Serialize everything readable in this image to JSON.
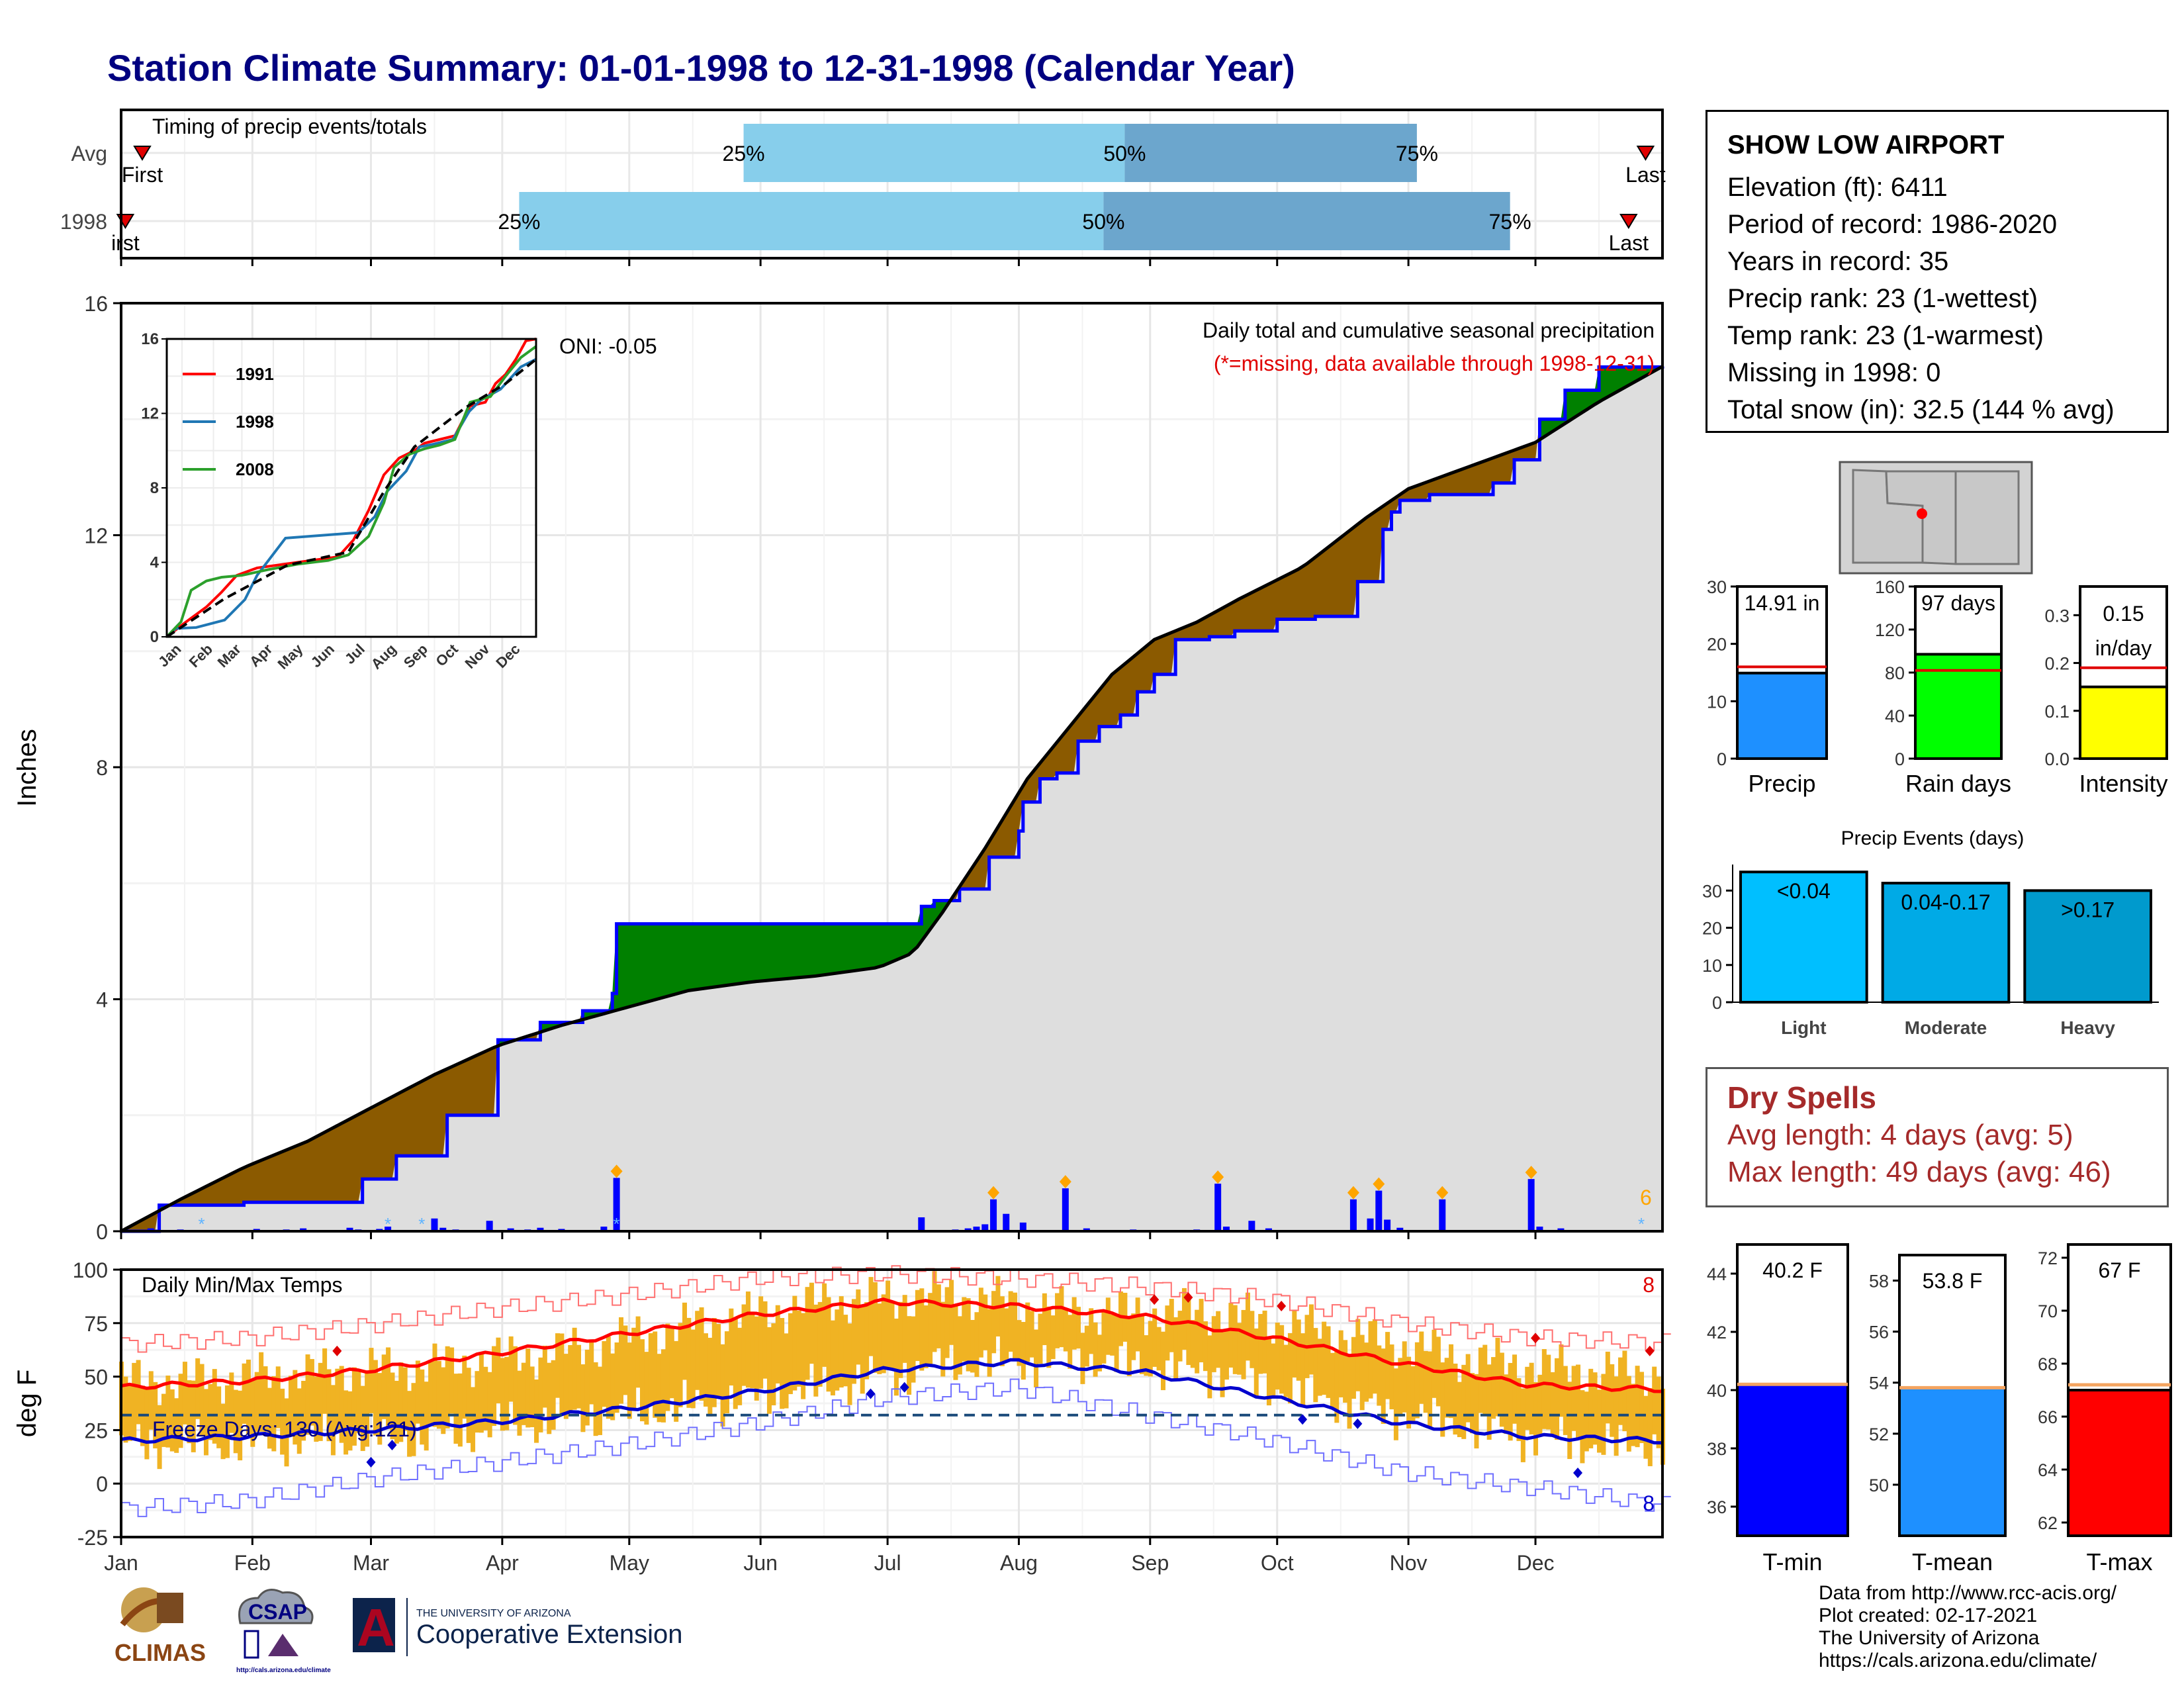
{
  "page_title": "Station Climate Summary: 01-01-1998 to 12-31-1998 (Calendar Year)",
  "station": {
    "name": "SHOW LOW AIRPORT",
    "lines": [
      "Elevation (ft): 6411",
      "Period of record: 1986-2020",
      "Years in record: 35",
      "Precip rank: 23 (1-wettest)",
      "Temp rank: 23 (1-warmest)",
      "Missing in 1998: 0",
      "Total snow (in): 32.5 (144 % avg)"
    ]
  },
  "dry_spells": {
    "title": "Dry Spells",
    "avg_length": "Avg length: 4 days (avg: 5)",
    "max_length": "Max length: 49 days (avg: 46)"
  },
  "credits": [
    "Data from http://www.rcc-acis.org/",
    "Plot created: 02-17-2021",
    "The University of Arizona",
    "https://cals.arizona.edu/climate/"
  ],
  "logos": {
    "climas": "CLIMAS",
    "csap": "CSAP",
    "csap_url": "http://cals.arizona.edu/climate",
    "ua_small": "THE UNIVERSITY OF ARIZONA",
    "ua_big": "Cooperative Extension",
    "ua_letter": "A"
  },
  "colors": {
    "navy": "#000080",
    "above_normal": "#008000",
    "below_normal": "#8b5a00",
    "normal_fill": "#dedede",
    "precip_line": "#0000ff",
    "tmax_line": "#ff0000",
    "tmin_line": "#0000cd",
    "temp_bar": "#f0b323",
    "timing_light": "#87ceeb",
    "timing_dark": "#6ca6cd",
    "dry_spell": "#a52a2a"
  },
  "chart_data": [
    {
      "id": "timing",
      "type": "bar",
      "title": "Timing of precip events/totals",
      "rows": [
        {
          "label": "Avg",
          "first_doy": 6,
          "q25_doy": 148,
          "q50_doy": 238,
          "q75_doy": 307,
          "last_doy": 361,
          "first_label": "First",
          "last_label": "Last"
        },
        {
          "label": "1998",
          "first_doy": 2,
          "q25_doy": 95,
          "q50_doy": 233,
          "q75_doy": 329,
          "last_doy": 357,
          "first_label": "irst",
          "last_label": "Last"
        }
      ],
      "pct_labels": [
        "25%",
        "50%",
        "75%"
      ],
      "x_range_doy": [
        1,
        365
      ]
    },
    {
      "id": "precip",
      "type": "area",
      "title": "Daily total and cumulative seasonal precipitation",
      "subtitle": "(*=missing, data available through 1998-12-31)",
      "ylabel": "Inches",
      "ylim": [
        0,
        16
      ],
      "yticks": [
        0,
        4,
        8,
        12,
        16
      ],
      "oni": "ONI: -0.05",
      "snow_count": "6",
      "months": [
        "Jan",
        "Feb",
        "Mar",
        "Apr",
        "May",
        "Jun",
        "Jul",
        "Aug",
        "Sep",
        "Oct",
        "Nov",
        "Dec"
      ],
      "series": [
        {
          "name": "1998 cumulative",
          "x_doy": [
            1,
            10,
            30,
            58,
            66,
            78,
            90,
            100,
            110,
            117,
            118,
            135,
            160,
            180,
            190,
            193,
            199,
            206,
            213,
            214,
            218,
            222,
            227,
            232,
            237,
            241,
            245,
            250,
            258,
            264,
            274,
            283,
            293,
            299,
            301,
            303,
            310,
            325,
            330,
            336,
            342,
            350,
            358,
            365
          ],
          "y": [
            0.0,
            0.45,
            0.5,
            0.9,
            1.3,
            2.0,
            3.3,
            3.6,
            3.8,
            4.1,
            5.3,
            5.3,
            5.3,
            5.3,
            5.6,
            5.7,
            5.9,
            6.45,
            6.9,
            7.4,
            7.8,
            7.9,
            8.45,
            8.7,
            8.9,
            9.3,
            9.6,
            10.2,
            10.25,
            10.35,
            10.55,
            10.6,
            11.2,
            12.1,
            12.4,
            12.6,
            12.7,
            12.9,
            13.3,
            14.0,
            14.5,
            14.9,
            14.9,
            14.91
          ]
        },
        {
          "name": "Normal cumulative",
          "x_doy": [
            1,
            15,
            30,
            45,
            58,
            75,
            90,
            105,
            120,
            135,
            150,
            165,
            180,
            188,
            195,
            205,
            215,
            225,
            235,
            245,
            255,
            265,
            280,
            295,
            305,
            320,
            335,
            350,
            365
          ],
          "y": [
            0.0,
            0.55,
            1.1,
            1.55,
            2.05,
            2.7,
            3.2,
            3.55,
            3.85,
            4.15,
            4.3,
            4.4,
            4.55,
            4.8,
            5.5,
            6.6,
            7.8,
            8.7,
            9.6,
            10.2,
            10.5,
            10.9,
            11.45,
            12.3,
            12.8,
            13.2,
            13.6,
            14.3,
            14.91
          ]
        }
      ],
      "daily_precip_days": [
        8,
        12,
        15,
        27,
        33,
        40,
        44,
        50,
        55,
        57,
        62,
        64,
        68,
        75,
        77,
        80,
        84,
        88,
        93,
        97,
        100,
        105,
        110,
        115,
        118,
        190,
        198,
        201,
        203,
        205,
        207,
        210,
        214,
        224,
        229,
        236,
        240,
        245,
        250,
        255,
        260,
        262,
        268,
        272,
        274,
        292,
        296,
        298,
        300,
        303,
        313,
        334,
        336,
        341
      ],
      "daily_precip_vals": [
        0.05,
        0.02,
        0.03,
        0.02,
        0.04,
        0.03,
        0.05,
        0.02,
        0.06,
        0.03,
        0.04,
        0.08,
        0.02,
        0.22,
        0.06,
        0.03,
        0.02,
        0.18,
        0.05,
        0.03,
        0.06,
        0.04,
        0.02,
        0.08,
        0.92,
        0.24,
        0.03,
        0.05,
        0.08,
        0.12,
        0.55,
        0.3,
        0.15,
        0.74,
        0.05,
        0.02,
        0.03,
        0.02,
        0.01,
        0.03,
        0.82,
        0.08,
        0.18,
        0.05,
        0.02,
        0.55,
        0.22,
        0.7,
        0.2,
        0.06,
        0.55,
        0.9,
        0.08,
        0.05
      ],
      "inset": {
        "type": "line",
        "ylim": [
          0,
          16
        ],
        "yticks": [
          0,
          4,
          8,
          12,
          16
        ],
        "months": [
          "Jan",
          "Feb",
          "Mar",
          "Apr",
          "May",
          "Jun",
          "Jul",
          "Aug",
          "Sep",
          "Oct",
          "Nov",
          "Dec"
        ],
        "series": [
          {
            "name": "1991",
            "color": "#ff0000",
            "x_doy": [
              1,
              20,
              40,
              55,
              70,
              90,
              130,
              170,
              185,
              200,
              215,
              230,
              245,
              255,
              270,
              285,
              300,
              315,
              325,
              335,
              345,
              355,
              365
            ],
            "y": [
              0,
              0.8,
              1.6,
              2.4,
              3.3,
              3.7,
              4.0,
              4.3,
              5.2,
              6.8,
              8.7,
              9.6,
              10.0,
              10.4,
              10.6,
              10.8,
              12.4,
              12.6,
              13.6,
              14.1,
              14.9,
              15.9,
              16.0
            ]
          },
          {
            "name": "1998",
            "color": "#1f77b4",
            "x_doy": [
              1,
              10,
              30,
              58,
              78,
              90,
              118,
              190,
              206,
              218,
              237,
              250,
              264,
              283,
              299,
              310,
              330,
              350,
              365
            ],
            "y": [
              0,
              0.45,
              0.5,
              0.9,
              2.0,
              3.3,
              5.3,
              5.6,
              6.45,
              7.8,
              8.9,
              10.2,
              10.35,
              10.6,
              12.1,
              12.7,
              13.3,
              14.5,
              14.91
            ]
          },
          {
            "name": "2008",
            "color": "#2ca02c",
            "x_doy": [
              1,
              15,
              25,
              40,
              55,
              75,
              100,
              130,
              160,
              180,
              200,
              215,
              225,
              240,
              255,
              270,
              285,
              300,
              320,
              335,
              350,
              365
            ],
            "y": [
              0,
              0.8,
              2.5,
              3.0,
              3.2,
              3.3,
              3.6,
              3.9,
              4.1,
              4.4,
              5.4,
              7.2,
              9.1,
              9.8,
              10.1,
              10.3,
              10.6,
              12.6,
              12.9,
              14.0,
              15.0,
              15.6
            ]
          },
          {
            "name": "Normal",
            "color": "#000000",
            "x_doy": [
              1,
              58,
              120,
              180,
              215,
              245,
              295,
              335,
              365
            ],
            "y": [
              0,
              2.05,
              3.85,
              4.55,
              7.8,
              10.2,
              12.3,
              13.6,
              14.91
            ]
          }
        ]
      }
    },
    {
      "id": "temps",
      "type": "line",
      "title": "Daily Min/Max Temps",
      "ylabel": "deg F",
      "ylim": [
        -25,
        100
      ],
      "yticks": [
        -25,
        0,
        25,
        50,
        75,
        100
      ],
      "freeze_label": "Freeze Days: 130 (Avg:121)",
      "freeze_line": 32,
      "record_high_count": "8",
      "record_low_count": "8",
      "months": [
        "Jan",
        "Feb",
        "Mar",
        "Apr",
        "May",
        "Jun",
        "Jul",
        "Aug",
        "Sep",
        "Oct",
        "Nov",
        "Dec"
      ],
      "series": [
        {
          "name": "Normal max",
          "x_doy": [
            1,
            31,
            59,
            90,
            120,
            151,
            181,
            212,
            243,
            273,
            304,
            334,
            365
          ],
          "y": [
            45,
            48,
            53,
            61,
            70,
            79,
            85,
            83,
            78,
            68,
            56,
            46,
            44
          ]
        },
        {
          "name": "Normal min",
          "x_doy": [
            1,
            31,
            59,
            90,
            120,
            151,
            181,
            212,
            243,
            273,
            304,
            334,
            365
          ],
          "y": [
            20,
            22,
            25,
            29,
            35,
            43,
            53,
            57,
            52,
            40,
            28,
            22,
            20
          ]
        },
        {
          "name": "Record max",
          "x_doy": [
            1,
            31,
            59,
            90,
            120,
            151,
            181,
            212,
            243,
            273,
            304,
            334,
            365
          ],
          "y": [
            65,
            68,
            74,
            82,
            88,
            96,
            98,
            96,
            92,
            86,
            75,
            68,
            66
          ]
        },
        {
          "name": "Record min",
          "x_doy": [
            1,
            31,
            59,
            90,
            120,
            151,
            181,
            212,
            243,
            273,
            304,
            334,
            365
          ],
          "y": [
            -12,
            -8,
            2,
            10,
            18,
            28,
            40,
            45,
            32,
            20,
            5,
            -2,
            -10
          ]
        }
      ],
      "daily_max_monthly": [
        48,
        52,
        55,
        62,
        74,
        85,
        88,
        80,
        80,
        70,
        58,
        52
      ],
      "daily_min_monthly": [
        18,
        20,
        22,
        30,
        36,
        45,
        56,
        58,
        52,
        38,
        26,
        18
      ],
      "annual_panels": [
        {
          "label": "T-min",
          "value_text": "40.2 F",
          "value": 40.2,
          "normal": 40.2,
          "ylim": [
            35,
            45
          ],
          "yticks": [
            36,
            38,
            40,
            42,
            44
          ],
          "color": "#0000ff"
        },
        {
          "label": "T-mean",
          "value_text": "53.8 F",
          "value": 53.8,
          "normal": 53.8,
          "ylim": [
            48,
            59
          ],
          "yticks": [
            50,
            52,
            54,
            56,
            58
          ],
          "color": "#1e90ff"
        },
        {
          "label": "T-max",
          "value_text": "67 F",
          "value": 67.0,
          "normal": 67.2,
          "ylim": [
            61.5,
            72.5
          ],
          "yticks": [
            62,
            64,
            66,
            68,
            70,
            72
          ],
          "color": "#ff0000"
        }
      ]
    },
    {
      "id": "annual_precip",
      "type": "bar",
      "panels": [
        {
          "label": "Precip",
          "value_text": "14.91 in",
          "value": 14.91,
          "normal": 16.0,
          "ylim": [
            0,
            30
          ],
          "yticks": [
            0,
            10,
            20,
            30
          ],
          "color": "#1e90ff"
        },
        {
          "label": "Rain days",
          "value_text": "97 days",
          "value": 97,
          "normal": 82,
          "ylim": [
            0,
            160
          ],
          "yticks": [
            0,
            40,
            80,
            120,
            160
          ],
          "color": "#00ff00"
        },
        {
          "label": "Intensity",
          "value_text": "0.15 in/day",
          "value_lines": [
            "0.15",
            "in/day"
          ],
          "value": 0.15,
          "normal": 0.19,
          "ylim": [
            0,
            0.36
          ],
          "yticks": [
            0.0,
            0.1,
            0.2,
            0.3
          ],
          "color": "#ffff00"
        }
      ]
    },
    {
      "id": "precip_events",
      "type": "bar",
      "title": "Precip Events (days)",
      "categories": [
        "Light",
        "Moderate",
        "Heavy"
      ],
      "bar_labels": [
        "<0.04",
        "0.04-0.17",
        ">0.17"
      ],
      "values": [
        35,
        32,
        30
      ],
      "colors": [
        "#00bfff",
        "#00aae6",
        "#009acd"
      ],
      "ylim": [
        0,
        37
      ],
      "yticks": [
        0,
        10,
        20,
        30
      ]
    }
  ]
}
